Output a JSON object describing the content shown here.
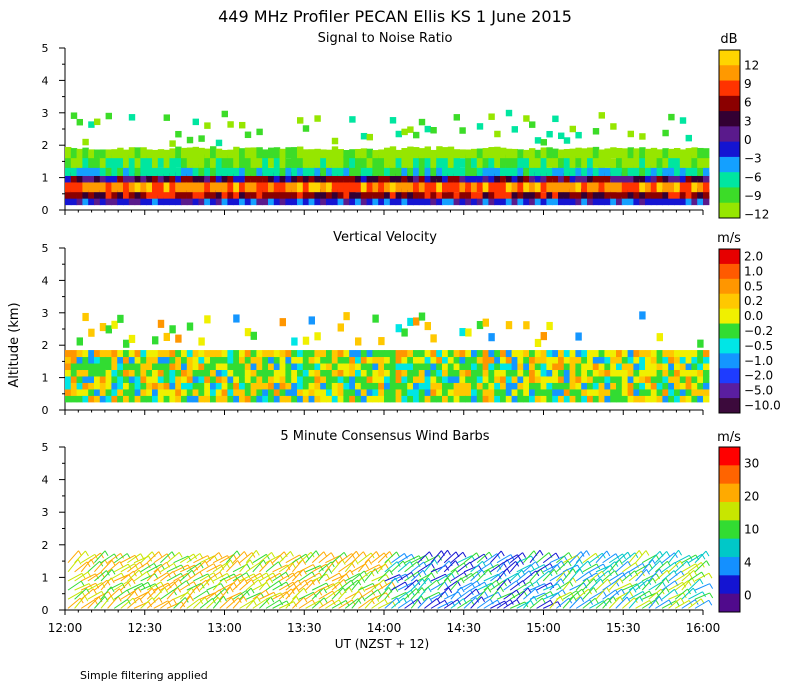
{
  "figure": {
    "title": "449 MHz Profiler PECAN Ellis KS   1 June 2015",
    "ylabel": "Altitude (km)",
    "xlabel": "UT   (NZST + 12)",
    "footnote": "Simple filtering applied"
  },
  "chart_data": [
    {
      "type": "heatmap",
      "title": "Signal to Noise Ratio",
      "colorbar_label": "dB",
      "colorbar_ticks": [
        "12",
        "9",
        "6",
        "3",
        "0",
        "−3",
        "−6",
        "−9",
        "−12"
      ],
      "colorbar_colors": [
        "#ffd400",
        "#ff9900",
        "#ff3300",
        "#8b0000",
        "#330033",
        "#5a1a8c",
        "#1414d2",
        "#14a0ff",
        "#00e6a0",
        "#3cdc28",
        "#96e600"
      ],
      "x_range": [
        "12:00",
        "16:00"
      ],
      "y_range": [
        0,
        5
      ],
      "y_ticks": [
        "0",
        "1",
        "2",
        "3",
        "4",
        "5"
      ],
      "x_ticks": [
        "12:00",
        "12:30",
        "13:00",
        "13:30",
        "14:00",
        "14:30",
        "15:00",
        "15:30",
        "16:00"
      ]
    },
    {
      "type": "heatmap",
      "title": "Vertical Velocity",
      "colorbar_label": "m/s",
      "colorbar_ticks": [
        "2.0",
        "1.0",
        "0.5",
        "0.2",
        "0.0",
        "−0.2",
        "−0.5",
        "−1.0",
        "−2.0",
        "−5.0",
        "−10.0"
      ],
      "colorbar_colors": [
        "#e60000",
        "#ff5a00",
        "#ff9600",
        "#ffc800",
        "#f0f000",
        "#32dc32",
        "#00e6e6",
        "#1496ff",
        "#1e3cff",
        "#5a1ea0",
        "#3c0a3c"
      ],
      "x_range": [
        "12:00",
        "16:00"
      ],
      "y_range": [
        0,
        5
      ],
      "y_ticks": [
        "0",
        "1",
        "2",
        "3",
        "4",
        "5"
      ]
    },
    {
      "type": "scatter",
      "title": "5 Minute Consensus Wind Barbs",
      "colorbar_label": "m/s",
      "colorbar_ticks": [
        "30",
        "20",
        "10",
        "4",
        "0"
      ],
      "colorbar_colors": [
        "#ff0000",
        "#ff6400",
        "#ffaa00",
        "#c8e600",
        "#32dc32",
        "#00c8c8",
        "#1490ff",
        "#1414d2",
        "#500a8c"
      ],
      "x_range": [
        "12:00",
        "16:00"
      ],
      "y_range": [
        0,
        5
      ],
      "y_ticks": [
        "0",
        "1",
        "2",
        "3",
        "4",
        "5"
      ],
      "x_ticks": [
        "12:00",
        "12:30",
        "13:00",
        "13:30",
        "14:00",
        "14:30",
        "15:00",
        "15:30",
        "16:00"
      ]
    }
  ]
}
